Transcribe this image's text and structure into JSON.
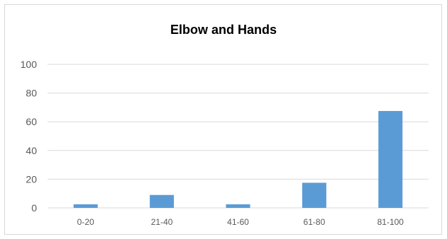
{
  "chart_data": {
    "type": "bar",
    "title": "Elbow and Hands",
    "categories": [
      "0-20",
      "21-40",
      "41-60",
      "61-80",
      "81-100"
    ],
    "values": [
      2.5,
      9,
      2.5,
      17.5,
      67.5
    ],
    "ylim": [
      0,
      100
    ],
    "yticks": [
      0,
      20,
      40,
      60,
      80,
      100
    ],
    "grid": true,
    "legend": "none",
    "bar_color": "#5b9bd5",
    "grid_color": "#d9d9d9"
  }
}
